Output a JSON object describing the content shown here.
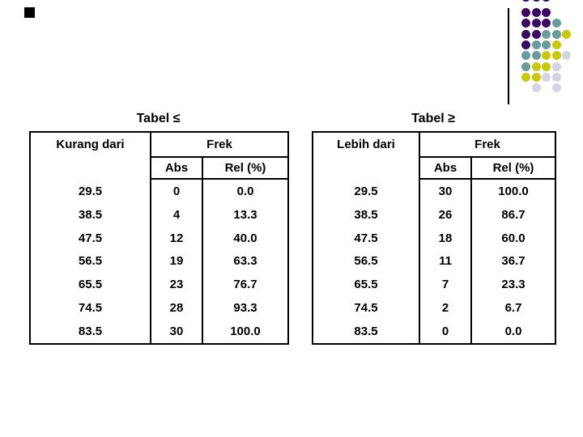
{
  "tables": [
    {
      "title": "Tabel ≤",
      "row_header": "Kurang dari",
      "group_header": "Frek",
      "col_headers": [
        "Abs",
        "Rel (%)"
      ],
      "rows": [
        [
          "29.5",
          "0",
          "0.0"
        ],
        [
          "38.5",
          "4",
          "13.3"
        ],
        [
          "47.5",
          "12",
          "40.0"
        ],
        [
          "56.5",
          "19",
          "63.3"
        ],
        [
          "65.5",
          "23",
          "76.7"
        ],
        [
          "74.5",
          "28",
          "93.3"
        ],
        [
          "83.5",
          "30",
          "100.0"
        ]
      ]
    },
    {
      "title": "Tabel ≥",
      "row_header": "Lebih dari",
      "group_header": "Frek",
      "col_headers": [
        "Abs",
        "Rel (%)"
      ],
      "rows": [
        [
          "29.5",
          "30",
          "100.0"
        ],
        [
          "38.5",
          "26",
          "86.7"
        ],
        [
          "47.5",
          "18",
          "60.0"
        ],
        [
          "56.5",
          "11",
          "36.7"
        ],
        [
          "65.5",
          "7",
          "23.3"
        ],
        [
          "74.5",
          "2",
          "6.7"
        ],
        [
          "83.5",
          "0",
          "0.0"
        ]
      ]
    }
  ],
  "decoration": {
    "dot_grid": [
      "PPP..",
      "PPP..",
      "PPPT.",
      "PPTTY",
      "PTTY.",
      "TTYYL",
      "TYYL.",
      "YYLL.",
      ".L.L."
    ],
    "dot_colors": {
      "P": "#3A0A63",
      "T": "#6B9C9B",
      "Y": "#C9C70A",
      "L": "#D4D4E4"
    },
    "line_color": "#000000",
    "square_color": "#000000"
  },
  "text_color": "#000000",
  "border_color": "#000000"
}
